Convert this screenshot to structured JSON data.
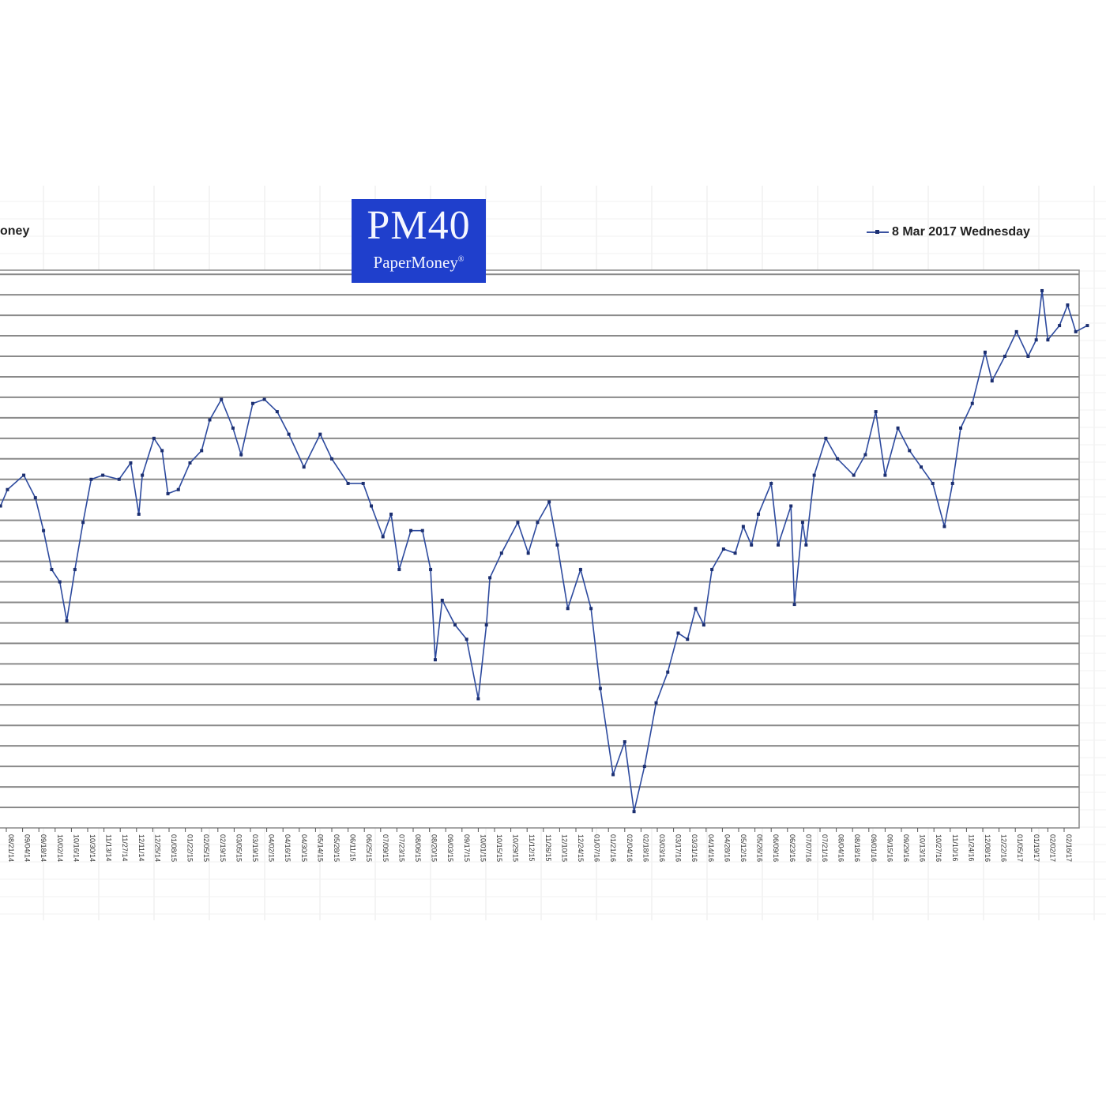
{
  "header": {
    "corner_text": "oney",
    "logo_title": "PM40",
    "logo_subtitle": "PaperMoney",
    "logo_mark": "®"
  },
  "colors": {
    "line": "#2d4a9e",
    "marker": "#1c2f70",
    "logo_bg": "#1f3fcc",
    "grid": "#8a8a8a"
  },
  "chart_data": {
    "type": "line",
    "title": "",
    "xlabel": "",
    "ylabel": "",
    "grid": true,
    "legend_position": "top-right",
    "ylim": [
      0,
      27.2
    ],
    "x_tick_labels": [
      "08/21/14",
      "09/04/14",
      "09/18/14",
      "10/02/14",
      "10/16/14",
      "10/30/14",
      "11/13/14",
      "11/27/14",
      "12/11/14",
      "12/25/14",
      "01/08/15",
      "01/22/15",
      "02/05/15",
      "02/19/15",
      "03/05/15",
      "03/19/15",
      "04/02/15",
      "04/16/15",
      "04/30/15",
      "05/14/15",
      "05/28/15",
      "06/11/15",
      "06/25/15",
      "07/09/15",
      "07/23/15",
      "08/06/15",
      "08/20/15",
      "09/03/15",
      "09/17/15",
      "10/01/15",
      "10/15/15",
      "10/29/15",
      "11/12/15",
      "11/26/15",
      "12/10/15",
      "12/24/15",
      "01/07/16",
      "01/21/16",
      "02/04/16",
      "02/18/16",
      "03/03/16",
      "03/17/16",
      "03/31/16",
      "04/14/16",
      "04/28/16",
      "05/12/16",
      "05/26/16",
      "06/09/16",
      "06/23/16",
      "07/07/16",
      "07/21/16",
      "08/04/16",
      "08/18/16",
      "09/01/16",
      "09/15/16",
      "09/29/16",
      "10/13/16",
      "10/27/16",
      "11/10/16",
      "11/24/16",
      "12/08/16",
      "12/22/16",
      "01/05/17",
      "01/19/17",
      "02/02/17",
      "02/16/17"
    ],
    "series": [
      {
        "name": "8 Mar 2017 Wednesday",
        "x": [
          "2014-08-16",
          "2014-08-22",
          "2014-09-05",
          "2014-09-15",
          "2014-09-22",
          "2014-09-29",
          "2014-10-06",
          "2014-10-12",
          "2014-10-19",
          "2014-10-26",
          "2014-11-02",
          "2014-11-12",
          "2014-11-26",
          "2014-12-06",
          "2014-12-13",
          "2014-12-16",
          "2014-12-26",
          "2015-01-02",
          "2015-01-07",
          "2015-01-16",
          "2015-01-26",
          "2015-02-05",
          "2015-02-12",
          "2015-02-22",
          "2015-03-04",
          "2015-03-11",
          "2015-03-21",
          "2015-03-31",
          "2015-04-11",
          "2015-04-21",
          "2015-05-04",
          "2015-05-18",
          "2015-05-28",
          "2015-06-11",
          "2015-06-24",
          "2015-07-01",
          "2015-07-11",
          "2015-07-18",
          "2015-07-25",
          "2015-08-04",
          "2015-08-14",
          "2015-08-21",
          "2015-08-25",
          "2015-08-31",
          "2015-09-11",
          "2015-09-21",
          "2015-10-01",
          "2015-10-08",
          "2015-10-11",
          "2015-10-21",
          "2015-11-04",
          "2015-11-13",
          "2015-11-21",
          "2015-12-01",
          "2015-12-08",
          "2015-12-17",
          "2015-12-28",
          "2016-01-06",
          "2016-01-14",
          "2016-01-25",
          "2016-02-04",
          "2016-02-12",
          "2016-02-21",
          "2016-03-02",
          "2016-03-12",
          "2016-03-21",
          "2016-03-29",
          "2016-04-05",
          "2016-04-12",
          "2016-04-19",
          "2016-04-29",
          "2016-05-09",
          "2016-05-16",
          "2016-05-23",
          "2016-05-29",
          "2016-06-09",
          "2016-06-15",
          "2016-06-26",
          "2016-06-29",
          "2016-07-06",
          "2016-07-09",
          "2016-07-16",
          "2016-07-26",
          "2016-08-05",
          "2016-08-19",
          "2016-08-29",
          "2016-09-07",
          "2016-09-15",
          "2016-09-26",
          "2016-10-06",
          "2016-10-16",
          "2016-10-26",
          "2016-11-05",
          "2016-11-12",
          "2016-11-19",
          "2016-11-29",
          "2016-12-10",
          "2016-12-16",
          "2016-12-27",
          "2017-01-06",
          "2017-01-16",
          "2017-01-23",
          "2017-01-28",
          "2017-02-02",
          "2017-02-12",
          "2017-02-19",
          "2017-02-26",
          "2017-03-08"
        ],
        "values": [
          15.7,
          16.5,
          17.2,
          16.1,
          14.5,
          12.6,
          12.0,
          10.1,
          12.6,
          14.9,
          17.0,
          17.2,
          17.0,
          17.8,
          15.3,
          17.2,
          19.0,
          18.4,
          16.3,
          16.5,
          17.8,
          18.4,
          19.9,
          20.9,
          19.5,
          18.2,
          20.7,
          20.9,
          20.3,
          19.2,
          17.6,
          19.2,
          18.0,
          16.8,
          16.8,
          15.7,
          14.2,
          15.3,
          12.6,
          14.5,
          14.5,
          12.6,
          8.2,
          11.1,
          9.9,
          9.2,
          6.3,
          9.9,
          12.2,
          13.4,
          14.9,
          13.4,
          14.9,
          15.9,
          13.8,
          10.7,
          12.6,
          10.7,
          6.8,
          2.6,
          4.2,
          0.8,
          3.0,
          6.1,
          7.6,
          9.5,
          9.2,
          10.7,
          9.9,
          12.6,
          13.6,
          13.4,
          14.7,
          13.8,
          15.3,
          16.8,
          13.8,
          15.7,
          10.9,
          14.9,
          13.8,
          17.2,
          19.0,
          18.0,
          17.2,
          18.2,
          20.3,
          17.2,
          19.5,
          18.4,
          17.6,
          16.8,
          14.7,
          16.8,
          19.5,
          20.7,
          23.2,
          21.8,
          23.0,
          24.2,
          23.0,
          23.8,
          26.2,
          23.8,
          24.5,
          25.5,
          24.2,
          24.5
        ]
      }
    ]
  }
}
